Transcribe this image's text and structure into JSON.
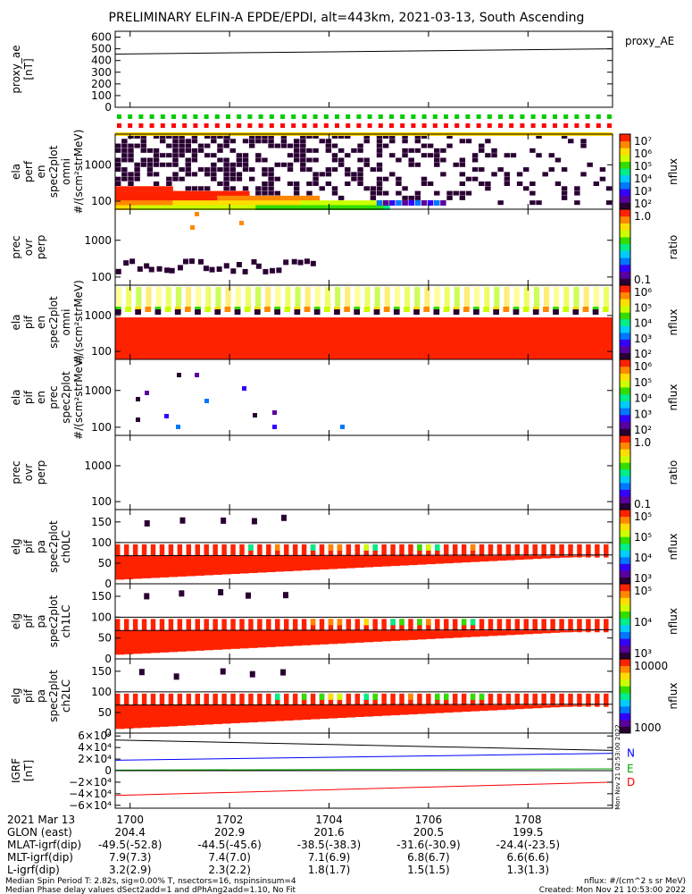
{
  "chart_data": {
    "type": "heatmap",
    "title": "PRELIMINARY ELFIN-A EPDE/EPDI, alt=443km, 2021-03-13, South Ascending",
    "x_ticks": [
      "1700",
      "1702",
      "1704",
      "1706",
      "1708"
    ],
    "panels": [
      {
        "id": "proxy_ae",
        "type": "line",
        "ylabel": [
          "proxy_ae",
          "[nT]"
        ],
        "yticks": [
          "600",
          "500",
          "400",
          "300",
          "200",
          "100",
          "0"
        ],
        "ylim": [
          0,
          650
        ],
        "legend": "proxy_AE",
        "series": [
          {
            "name": "proxy_AE",
            "x": [
              1699.7,
              1709.7
            ],
            "y": [
              455,
              500
            ],
            "color": "#000000"
          }
        ]
      },
      {
        "id": "elc_perp",
        "type": "heatmap",
        "ylabel": [
          "ela",
          "perf",
          "en",
          "spec2plot",
          "omni",
          "#/(scm²strMeV)"
        ],
        "yticks": [
          "1000",
          "100"
        ],
        "colorbar": {
          "ticks": [
            "10⁷",
            "10⁶",
            "10⁵",
            "10⁴",
            "10³",
            "10²"
          ],
          "label": "nflux"
        },
        "scale": "log",
        "ylim": [
          60,
          7000
        ],
        "flag_rows": [
          "#00cc00",
          "#ff0000",
          "#ffd700"
        ]
      },
      {
        "id": "elc_ratio",
        "type": "heatmap",
        "ylabel": [
          "prec",
          "ovr",
          "perp"
        ],
        "yticks": [
          "1000",
          "100"
        ],
        "colorbar": {
          "ticks": [
            "1.0",
            "0.1"
          ],
          "label": "ratio"
        },
        "scale": "log",
        "ylim": [
          60,
          7000
        ]
      },
      {
        "id": "ion_omni",
        "type": "heatmap",
        "ylabel": [
          "ela",
          "pif",
          "en",
          "spec2plot",
          "omni",
          "#/(scm²strMeV)"
        ],
        "yticks": [
          "1000",
          "100"
        ],
        "colorbar": {
          "ticks": [
            "10⁶",
            "10⁵",
            "10⁴",
            "10³",
            "10²"
          ],
          "label": "nflux"
        },
        "scale": "log",
        "ylim": [
          60,
          7000
        ]
      },
      {
        "id": "ion_prec",
        "type": "heatmap",
        "ylabel": [
          "ela",
          "pif",
          "en",
          "prec",
          "spec2plot",
          "#/(scm²strMeV)"
        ],
        "yticks": [
          "1000",
          "100"
        ],
        "colorbar": {
          "ticks": [
            "10⁶",
            "10⁵",
            "10⁴",
            "10³",
            "10²"
          ],
          "label": "nflux"
        },
        "scale": "log",
        "ylim": [
          60,
          7000
        ]
      },
      {
        "id": "ion_ratio",
        "type": "heatmap",
        "ylabel": [
          "prec",
          "ovr",
          "perp"
        ],
        "yticks": [
          "1000",
          "100"
        ],
        "colorbar": {
          "ticks": [
            "1.0",
            "0.1"
          ],
          "label": "ratio"
        },
        "scale": "log",
        "ylim": [
          60,
          7000
        ]
      },
      {
        "id": "pa_ch0",
        "type": "heatmap",
        "ylabel": [
          "elg",
          "pif",
          "pa",
          "spec2plot",
          "ch0LC"
        ],
        "yticks": [
          "150",
          "100",
          "50",
          "0"
        ],
        "colorbar": {
          "ticks": [
            "10⁵",
            "10⁵",
            "10⁴",
            "10³"
          ],
          "label": "nflux"
        },
        "ylim": [
          0,
          180
        ]
      },
      {
        "id": "pa_ch1",
        "type": "heatmap",
        "ylabel": [
          "elg",
          "pif",
          "pa",
          "spec2plot",
          "ch1LC"
        ],
        "yticks": [
          "150",
          "100",
          "50",
          "0"
        ],
        "colorbar": {
          "ticks": [
            "10⁵",
            "10⁴",
            "10³"
          ],
          "label": "nflux"
        },
        "ylim": [
          0,
          180
        ]
      },
      {
        "id": "pa_ch2",
        "type": "heatmap",
        "ylabel": [
          "elg",
          "pif",
          "pa",
          "spec2plot",
          "ch2LC"
        ],
        "yticks": [
          "150",
          "100",
          "50",
          "0"
        ],
        "colorbar": {
          "ticks": [
            "10000",
            "1000"
          ],
          "label": "nflux"
        },
        "ylim": [
          0,
          180
        ]
      },
      {
        "id": "igrf",
        "type": "line",
        "ylabel": [
          "IGRF",
          "[nT]"
        ],
        "yticks": [
          "6×10⁴",
          "4×10⁴",
          "2×10⁴",
          "0",
          "−2×10⁴",
          "−4×10⁴",
          "−6×10⁴"
        ],
        "ylim": [
          -65000,
          65000
        ],
        "series": [
          {
            "name": "N",
            "x": [
              1699.7,
              1709.7
            ],
            "y": [
              18000,
              30000
            ],
            "color": "#0000ff"
          },
          {
            "name": "E",
            "x": [
              1699.7,
              1709.7
            ],
            "y": [
              1000,
              3000
            ],
            "color": "#00aa00"
          },
          {
            "name": "D",
            "x": [
              1699.7,
              1709.7
            ],
            "y": [
              -43000,
              -20000
            ],
            "color": "#ff0000"
          },
          {
            "name": "",
            "x": [
              1699.7,
              1709.7
            ],
            "y": [
              53000,
              35000
            ],
            "color": "#000000"
          }
        ]
      }
    ],
    "colormap": [
      "#ffffff",
      "#2a0033",
      "#5a00a0",
      "#3300ff",
      "#0077ff",
      "#00ccff",
      "#00ee88",
      "#33dd00",
      "#ccff00",
      "#ffdd00",
      "#ff8800",
      "#ff2200"
    ],
    "orbit_table": {
      "date": "2021 Mar 13",
      "time": [
        "1700",
        "1702",
        "1704",
        "1706",
        "1708"
      ],
      "rows": [
        {
          "label": "GLON (east)",
          "values": [
            "204.4",
            "202.9",
            "201.6",
            "200.5",
            "199.5"
          ]
        },
        {
          "label": "MLAT-igrf(dip)",
          "values": [
            "-49.5(-52.8)",
            "-44.5(-45.6)",
            "-38.5(-38.3)",
            "-31.6(-30.9)",
            "-24.4(-23.5)"
          ]
        },
        {
          "label": "MLT-igrf(dip)",
          "values": [
            "7.9(7.3)",
            "7.4(7.0)",
            "7.1(6.9)",
            "6.8(6.7)",
            "6.6(6.6)"
          ]
        },
        {
          "label": "L-igrf(dip)",
          "values": [
            "3.2(2.9)",
            "2.3(2.2)",
            "1.8(1.7)",
            "1.5(1.5)",
            "1.3(1.3)"
          ]
        }
      ]
    }
  },
  "footer": {
    "line1": "Median Spin Period T: 2.82s, sig=0.00% T, nsectors=16, nspinsinsum=4",
    "line2": "Median Phase delay values dSect2add=1 and dPhAng2add=1.10, No Fit",
    "units": "nflux: #/(cm^2 s sr MeV)",
    "created": "Created: Mon Nov 21 10:53:00 2022",
    "stamp": "Mon Nov 21 02:53:00 2022"
  },
  "colors": {
    "background": "#ffffff",
    "frame": "#000000"
  }
}
